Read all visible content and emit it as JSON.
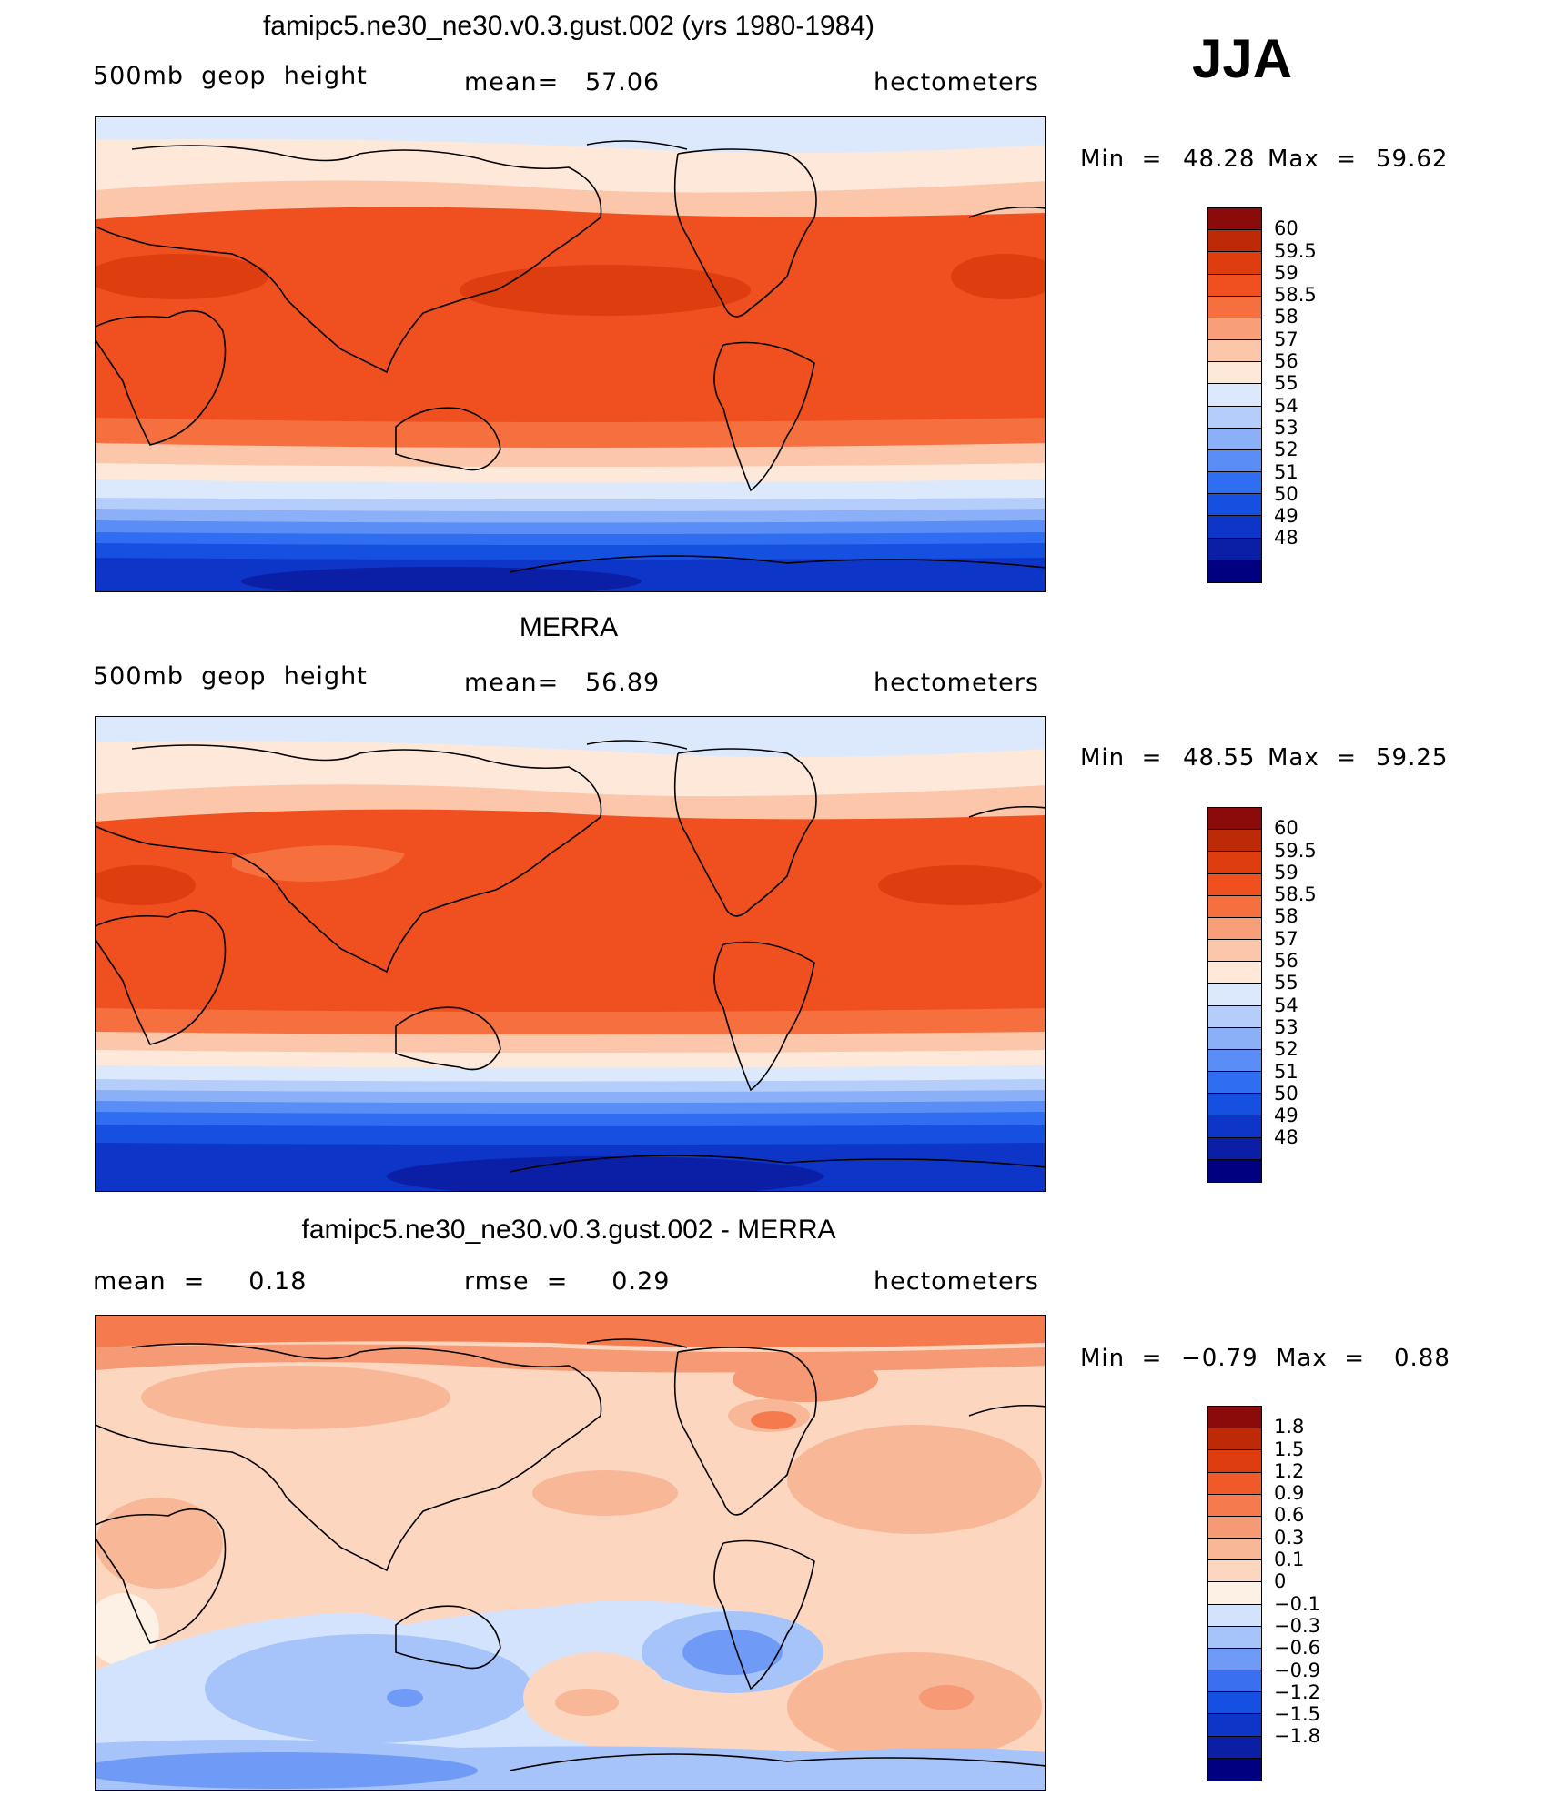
{
  "season": "JJA",
  "colors": {
    "model": [
      "#000080",
      "#0a1fa6",
      "#0d35c7",
      "#1550e0",
      "#2f6ef0",
      "#5a8df5",
      "#8cb0f8",
      "#b4cdfa",
      "#dce9fd",
      "#fde8da",
      "#fcc6aa",
      "#f89f7a",
      "#f66f3f",
      "#f04f20",
      "#de3d10",
      "#bc2a08",
      "#8b0a0a"
    ],
    "diff": [
      "#000080",
      "#0a1fa6",
      "#0d35c7",
      "#1550e0",
      "#3a70f0",
      "#6f9bf6",
      "#a6c3fa",
      "#d3e3fd",
      "#fdf0e4",
      "#fdd6c0",
      "#f8b898",
      "#f59a74",
      "#f57a4e",
      "#ef5a28",
      "#de3d10",
      "#bc2a08",
      "#8b0a0a"
    ]
  },
  "panels": [
    {
      "title": "famipc5.ne30_ne30.v0.3.gust.002 (yrs 1980-1984)",
      "left_label": "500mb  geop  height",
      "mid_label": "mean=   57.06",
      "right_label": "hectometers",
      "min_label": "Min  =",
      "min_value": "48.28",
      "max_label": "Max  =",
      "max_value": "59.62",
      "colorbar_labels": [
        "60",
        "59.5",
        "59",
        "58.5",
        "58",
        "57",
        "56",
        "55",
        "54",
        "53",
        "52",
        "51",
        "50",
        "49",
        "48"
      ]
    },
    {
      "title": "MERRA",
      "left_label": "500mb  geop  height",
      "mid_label": "mean=   56.89",
      "right_label": "hectometers",
      "min_label": "Min  =",
      "min_value": "48.55",
      "max_label": "Max  =",
      "max_value": "59.25",
      "colorbar_labels": [
        "60",
        "59.5",
        "59",
        "58.5",
        "58",
        "57",
        "56",
        "55",
        "54",
        "53",
        "52",
        "51",
        "50",
        "49",
        "48"
      ]
    },
    {
      "title": "famipc5.ne30_ne30.v0.3.gust.002 - MERRA",
      "left_label": "mean  =     0.18",
      "mid_label": "rmse  =     0.29",
      "right_label": "hectometers",
      "min_label": "Min  =",
      "min_value": "−0.79",
      "max_label": "Max  =",
      "max_value": "0.88",
      "colorbar_labels": [
        "1.8",
        "1.5",
        "1.2",
        "0.9",
        "0.6",
        "0.3",
        "0.1",
        "0",
        "−0.1",
        "−0.3",
        "−0.6",
        "−0.9",
        "−1.2",
        "−1.5",
        "−1.8"
      ]
    }
  ]
}
